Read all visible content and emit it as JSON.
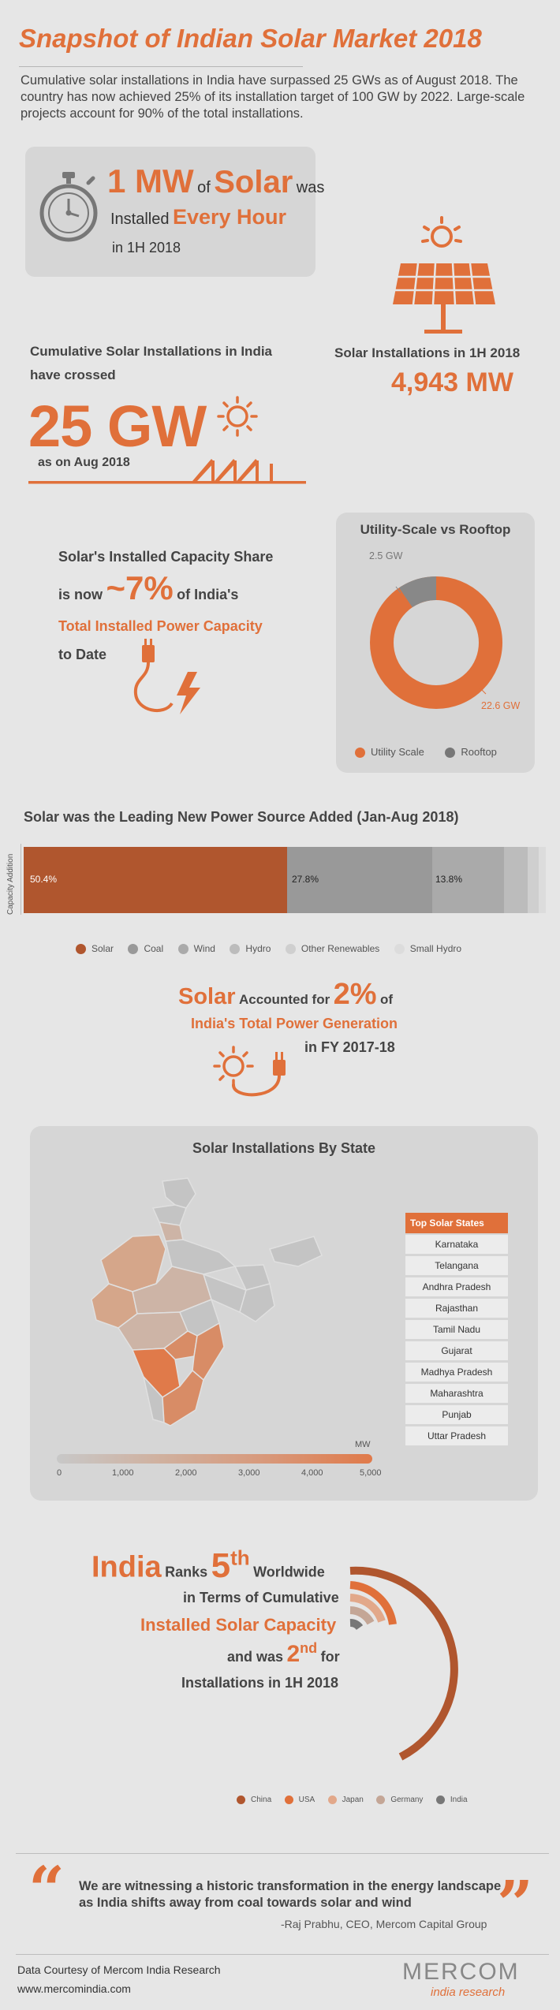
{
  "header": {
    "title": "Snapshot of Indian Solar Market 2018",
    "intro": "Cumulative solar installations in India have surpassed 25 GWs as of August 2018. The country has now achieved 25% of its installation target of 100 GW by 2022. Large-scale projects account for 90% of the total installations."
  },
  "hourly": {
    "part1": "1 MW",
    "part2": "of",
    "part3": "Solar",
    "part4": "was",
    "part5": "Installed",
    "part6": "Every Hour",
    "part7": "in 1H 2018"
  },
  "h1_installs": {
    "label": "Solar Installations in 1H 2018",
    "value": "4,943 MW"
  },
  "cumulative": {
    "label_line1": "Cumulative Solar Installations in India",
    "label_line2": "have crossed",
    "value": "25 GW",
    "date": "as on Aug 2018"
  },
  "capacity_share": {
    "line1": "Solar's Installed Capacity Share",
    "line2a": "is now",
    "line2b": "~7%",
    "line2c": "of India's",
    "line3": "Total Installed Power Capacity",
    "line4": "to Date"
  },
  "utility_rooftop": {
    "title": "Utility-Scale vs Rooftop",
    "label_rooftop": "2.5 GW",
    "label_utility": "22.6 GW",
    "legend_utility": "Utility Scale",
    "legend_rooftop": "Rooftop"
  },
  "new_power": {
    "title": "Solar was the Leading New Power Source Added (Jan-Aug 2018)",
    "axis_label": "Capacity Addition",
    "label_solar": "50.4%",
    "label_coal": "27.8%",
    "label_wind": "13.8%",
    "legend": [
      "Solar",
      "Coal",
      "Wind",
      "Hydro",
      "Other Renewables",
      "Small Hydro"
    ]
  },
  "generation": {
    "part1": "Solar",
    "part2": "Accounted for",
    "part3": "2%",
    "part4": "of",
    "line2": "India's Total Power Generation",
    "line3": "in FY 2017-18"
  },
  "states": {
    "title": "Solar Installations By State",
    "list_header": "Top Solar States",
    "list": [
      "Karnataka",
      "Telangana",
      "Andhra Pradesh",
      "Rajasthan",
      "Tamil Nadu",
      "Gujarat",
      "Madhya Pradesh",
      "Maharashtra",
      "Punjab",
      "Uttar Pradesh"
    ],
    "scale_unit": "MW",
    "scale_ticks": [
      "0",
      "1,000",
      "2,000",
      "3,000",
      "4,000",
      "5,000"
    ]
  },
  "ranking": {
    "part1": "India",
    "part2": "Ranks",
    "part3": "5",
    "part3_sup": "th",
    "part4": "Worldwide",
    "line2": "in Terms of Cumulative",
    "line3": "Installed Solar Capacity",
    "line4a": "and was",
    "line4b": "2",
    "line4b_sup": "nd",
    "line4c": "for",
    "line5": "Installations in 1H 2018",
    "legend": [
      "China",
      "USA",
      "Japan",
      "Germany",
      "India"
    ]
  },
  "quote": {
    "text": "We are witnessing a historic transformation in the energy landscape as India shifts away from coal towards solar and wind",
    "author": "-Raj Prabhu, CEO, Mercom Capital Group"
  },
  "footer": {
    "courtesy": "Data Courtesy of Mercom India Research",
    "url": "www.mercomindia.com",
    "brand": "MERCOM",
    "brand_sub": "india research"
  },
  "colors": {
    "accent": "#e0703a",
    "solar_bar": "#b0562e",
    "coal": "#999999",
    "wind": "#aaaaaa",
    "hydro": "#bcbcbc",
    "other": "#cfcfcf",
    "small_hydro": "#dcdcdc"
  },
  "icons": [
    "stopwatch-icon",
    "sun-icon",
    "solar-panel-icon",
    "plug-icon",
    "lightning-icon",
    "quote-open-icon",
    "quote-close-icon"
  ]
}
